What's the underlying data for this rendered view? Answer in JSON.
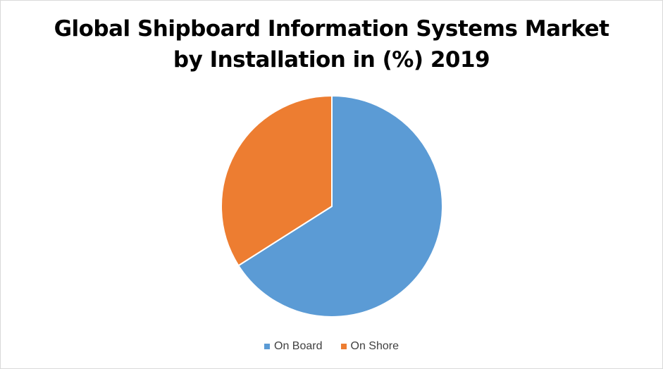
{
  "chart_data": {
    "type": "pie",
    "title_lines": [
      "Global Shipboard Information Systems Market",
      "by Installation in (%) 2019"
    ],
    "categories": [
      "On Board",
      "On Shore"
    ],
    "values": [
      66,
      34
    ],
    "colors": [
      "#5b9bd5",
      "#ed7d31"
    ],
    "legend_position": "bottom",
    "start_angle_deg": 0,
    "direction": "clockwise"
  }
}
